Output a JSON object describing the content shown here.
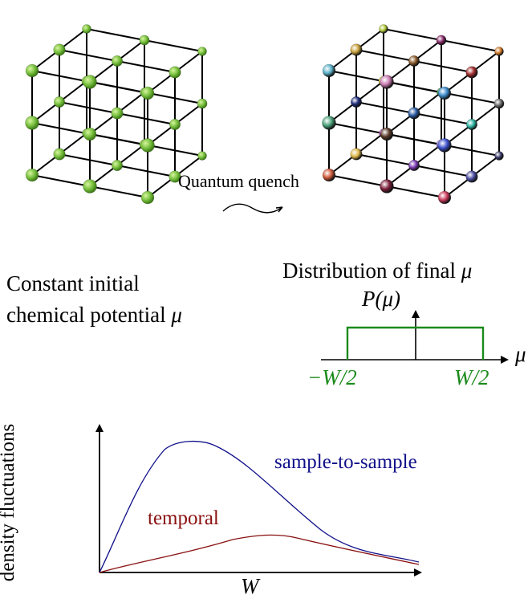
{
  "quench_label": "Quantum quench",
  "initial": {
    "line1": "Constant initial",
    "line2": "chemical potential",
    "symbol": "μ"
  },
  "distribution": {
    "title": "Distribution of final",
    "title_symbol": "μ",
    "p_label": "P(μ)",
    "axis_symbol": "μ",
    "left_tick": "−W/2",
    "right_tick": "W/2",
    "color": "#1a8a1a"
  },
  "fluct_plot": {
    "ylabel": "density fluctuations",
    "xlabel": "W",
    "series": [
      {
        "name": "sample-to-sample",
        "color": "#10108a"
      },
      {
        "name": "temporal",
        "color": "#8a1010"
      }
    ]
  },
  "colors": {
    "green_sphere": "#7bc242",
    "lattice": "#000000"
  }
}
